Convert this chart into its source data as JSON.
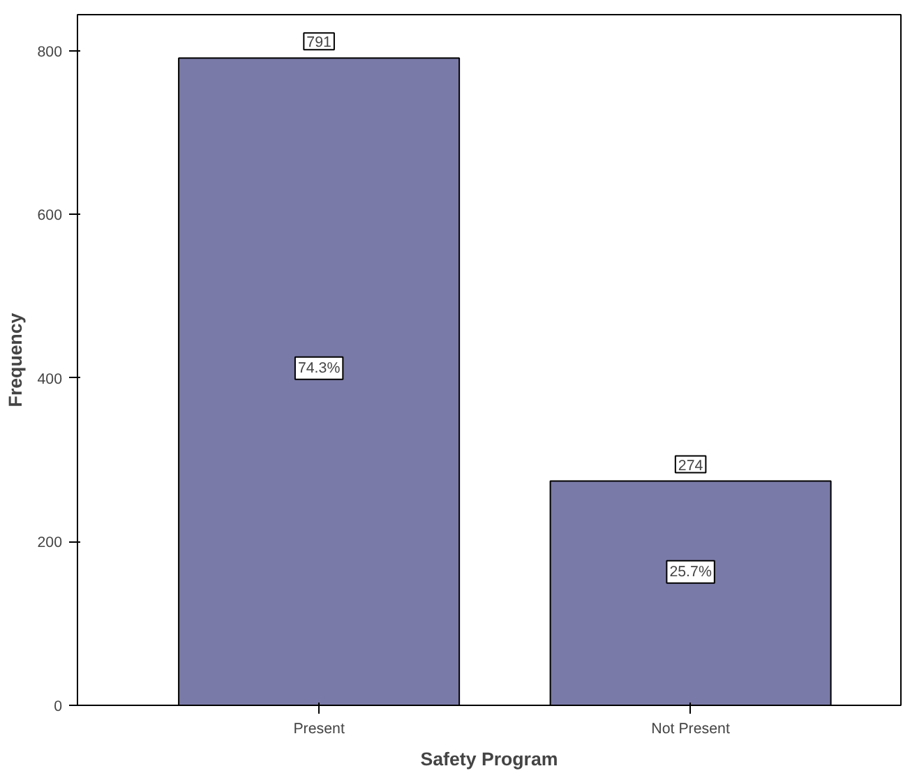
{
  "chart_data": {
    "type": "bar",
    "xlabel": "Safety Program",
    "ylabel": "Frequency",
    "categories": [
      "Present",
      "Not Present"
    ],
    "values": [
      791,
      274
    ],
    "color": "#7a7aa8",
    "data_labels": true,
    "annotations": [
      {
        "text": "74.3%",
        "x": "Present",
        "y": 412
      },
      {
        "text": "25.7%",
        "x": "Not Present",
        "y": 163
      }
    ],
    "ylim": [
      0,
      844
    ],
    "yticks": [
      0,
      200,
      400,
      600,
      800
    ],
    "grid": false
  }
}
